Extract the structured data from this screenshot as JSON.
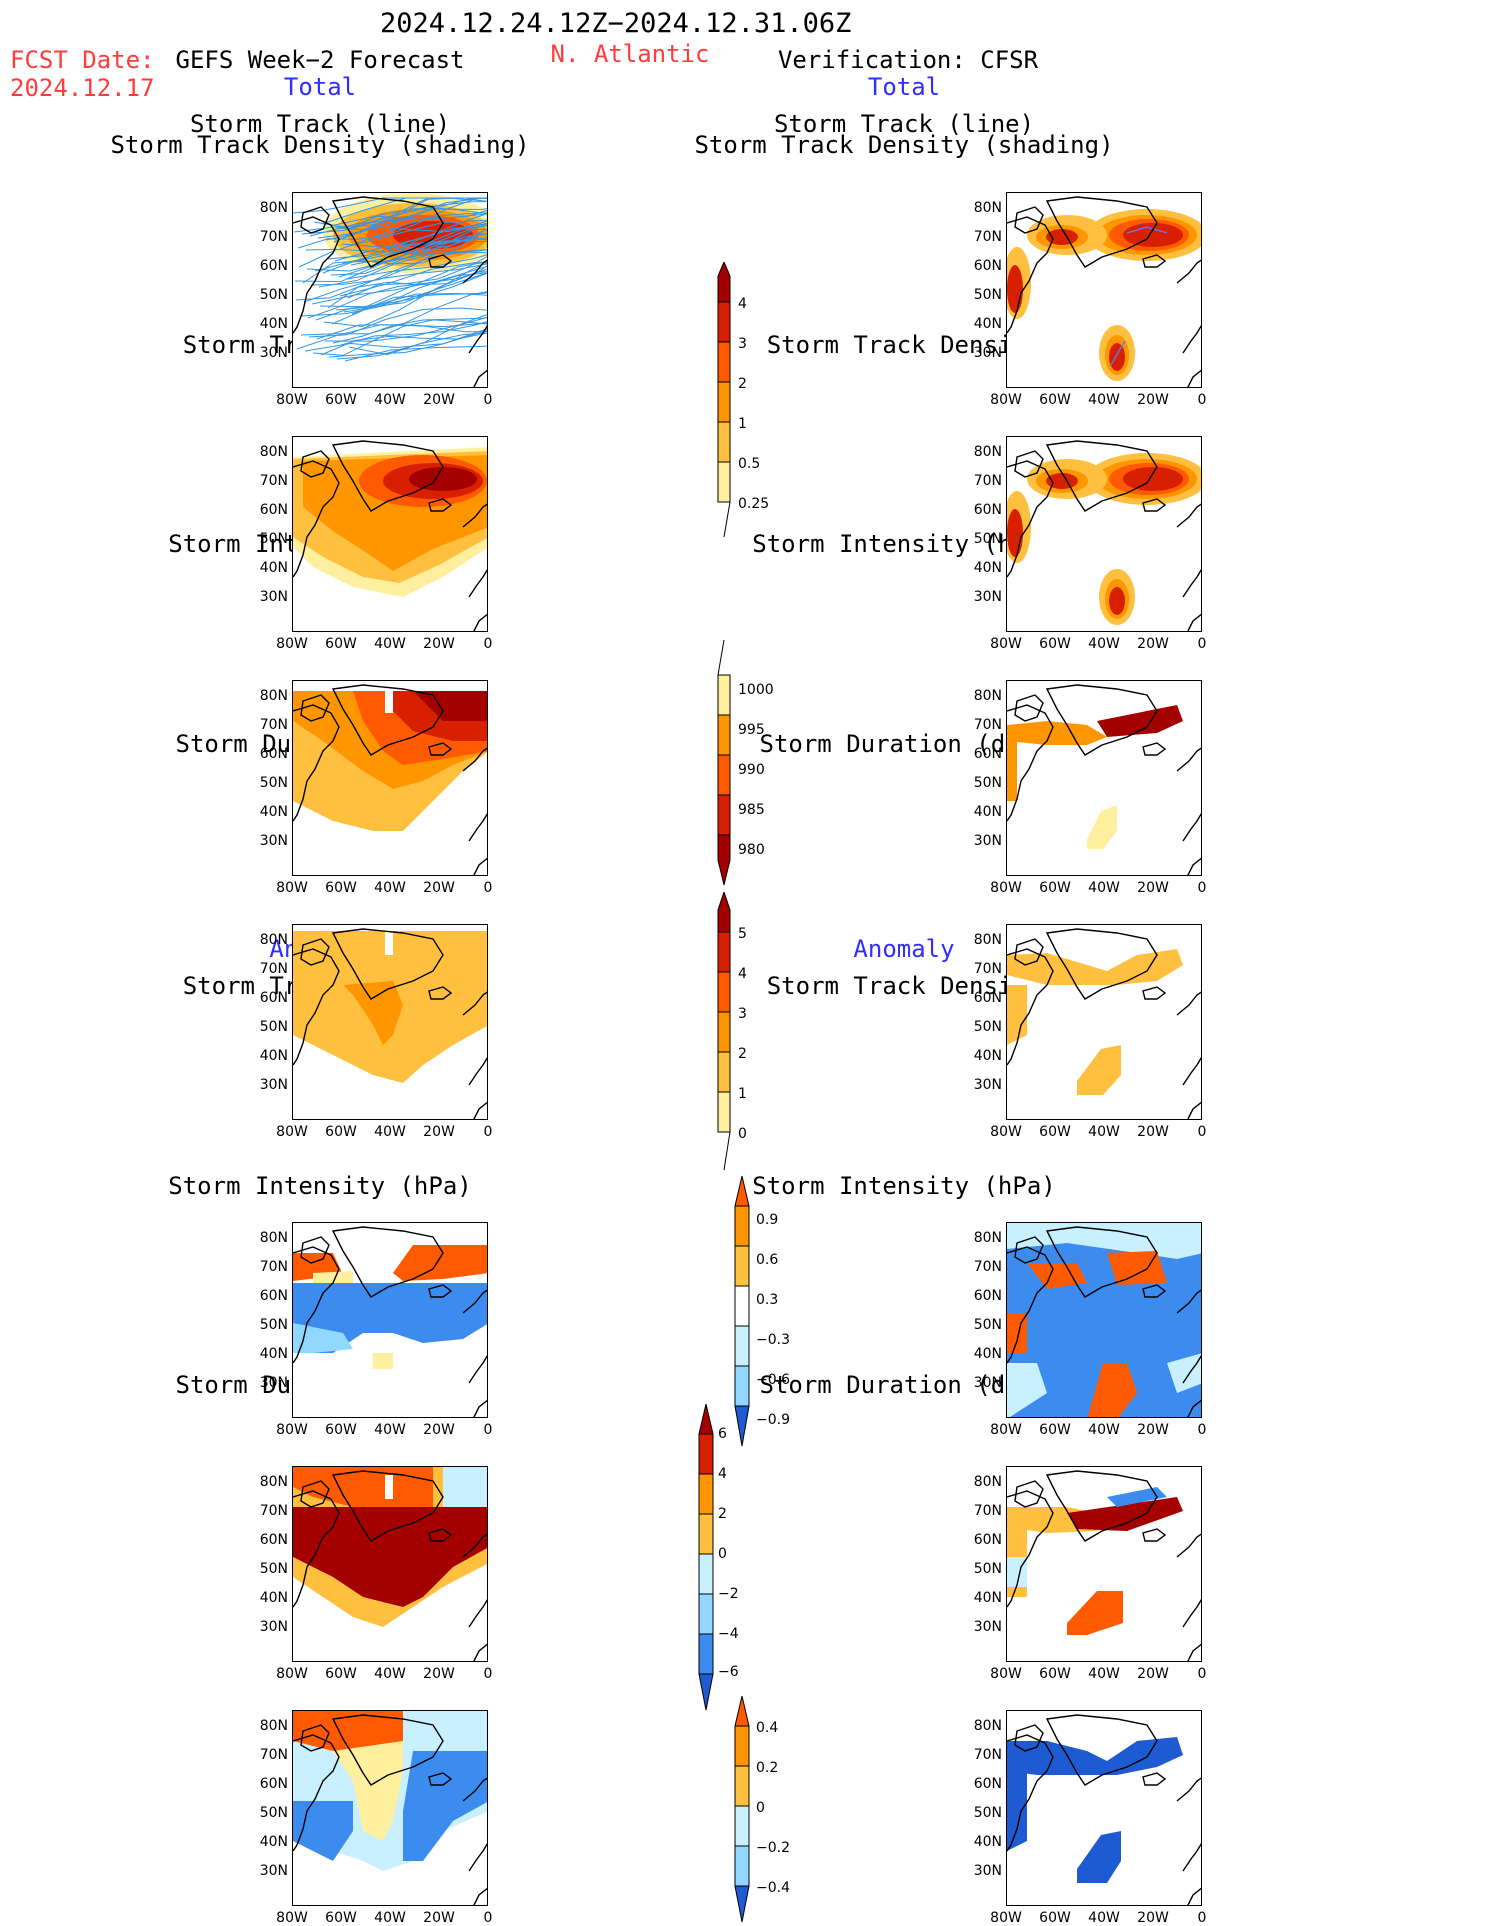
{
  "header": {
    "date_range": "2024.12.24.12Z−2024.12.31.06Z",
    "fcst_label": "FCST Date:",
    "fcst_date": "2024.12.17",
    "region": "N. Atlantic",
    "left_title": "GEFS Week−2 Forecast",
    "right_title": "Verification: CFSR",
    "total_left": "Total",
    "total_right": "Total",
    "anomaly_left": "Anomaly",
    "anomaly_right": "Anomaly"
  },
  "panel_titles": {
    "track_line": "Storm Track (line)",
    "track_shading": "Storm Track Density (shading)",
    "density": "Storm Track Density",
    "intensity": "Storm Intensity (hPa)",
    "duration": "Storm Duration (day)"
  },
  "axes": {
    "lat_ticks": [
      "80N",
      "70N",
      "60N",
      "50N",
      "40N",
      "30N"
    ],
    "lon_ticks": [
      "80W",
      "60W",
      "40W",
      "20W",
      "0"
    ]
  },
  "colorbars": {
    "density_total": [
      "4",
      "3",
      "2",
      "1",
      "0.5",
      "0.25"
    ],
    "intensity_total": [
      "1000",
      "995",
      "990",
      "985",
      "980"
    ],
    "duration_total": [
      "5",
      "4",
      "3",
      "2",
      "1",
      "0"
    ],
    "density_anom": [
      "0.9",
      "0.6",
      "0.3",
      "−0.3",
      "−0.6",
      "−0.9"
    ],
    "intensity_anom": [
      "6",
      "4",
      "2",
      "0",
      "−2",
      "−4",
      "−6"
    ],
    "duration_anom": [
      "0.4",
      "0.2",
      "0",
      "−0.2",
      "−0.4"
    ]
  },
  "colors": {
    "dark_red": "#a50000",
    "red": "#d72000",
    "orange_red": "#ff5a00",
    "orange": "#ff9600",
    "light_orange": "#ffc040",
    "yellow": "#fff0a0",
    "pale_blue": "#c8f0ff",
    "light_blue": "#90d8ff",
    "blue": "#3c8cf0",
    "dark_blue": "#1e5ad2",
    "track_line": "#3296e6"
  }
}
